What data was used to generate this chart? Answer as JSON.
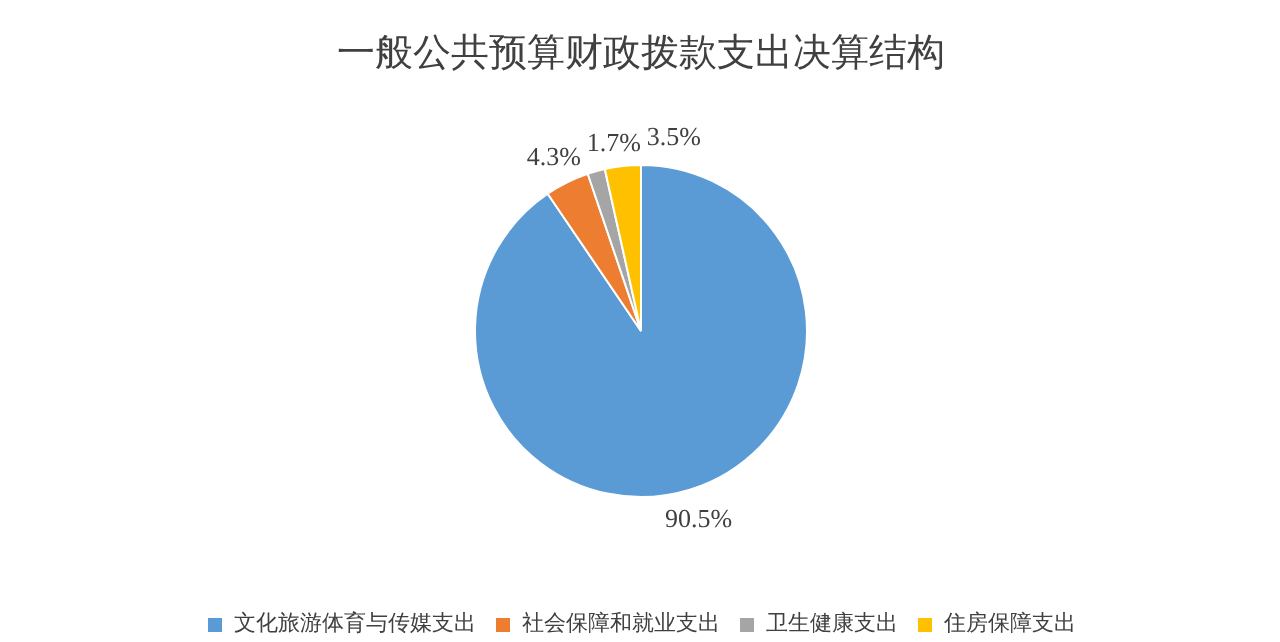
{
  "chart_data": {
    "type": "pie",
    "title": "一般公共预算财政拨款支出决算结构",
    "categories": [
      "文化旅游体育与传媒支出",
      "社会保障和就业支出",
      "卫生健康支出",
      "住房保障支出"
    ],
    "values": [
      90.5,
      4.3,
      1.7,
      3.5
    ],
    "colors": [
      "#5b9bd5",
      "#ed7d31",
      "#a5a5a5",
      "#ffc000"
    ],
    "value_labels": [
      "90.5%",
      "4.3%",
      "1.7%",
      "3.5%"
    ],
    "legend": "bottom"
  }
}
